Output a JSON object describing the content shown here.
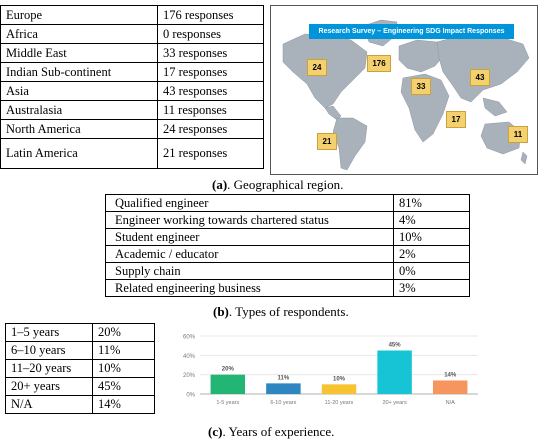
{
  "regions": [
    {
      "region": "Europe",
      "responses": "176 responses"
    },
    {
      "region": "Africa",
      "responses": "0 responses"
    },
    {
      "region": "Middle East",
      "responses": "33 responses"
    },
    {
      "region": "Indian Sub-continent",
      "responses": "17 responses"
    },
    {
      "region": "Asia",
      "responses": "43 responses"
    },
    {
      "region": "Australasia",
      "responses": "11 responses"
    },
    {
      "region": "North America",
      "responses": "24 responses"
    },
    {
      "region": "Latin America",
      "responses": "21 responses"
    }
  ],
  "map": {
    "banner": "Research Survey – Engineering SDG Impact Responses",
    "badges": {
      "north_america": "24",
      "europe": "176",
      "middle_east": "33",
      "asia": "43",
      "indian_subcontinent": "17",
      "latin_america": "21",
      "australasia": "11"
    },
    "land_color": "#a9b1ba",
    "badge_color": "#f4d06f",
    "banner_color": "#0095db"
  },
  "captions": {
    "a_label": "(a)",
    "a_text": ". Geographical region.",
    "b_label": "(b)",
    "b_text": ". Types of respondents.",
    "c_label": "(c)",
    "c_text": ". Years of experience."
  },
  "respondents": [
    {
      "type": "Qualified engineer",
      "pct": "81%"
    },
    {
      "type": "Engineer working towards chartered status",
      "pct": "4%"
    },
    {
      "type": "Student engineer",
      "pct": "10%"
    },
    {
      "type": "Academic / educator",
      "pct": "2%"
    },
    {
      "type": "Supply chain",
      "pct": "0%"
    },
    {
      "type": "Related engineering business",
      "pct": "3%"
    }
  ],
  "experience": [
    {
      "range": "1–5 years",
      "pct": "20%"
    },
    {
      "range": "6–10 years",
      "pct": "11%"
    },
    {
      "range": "11–20 years",
      "pct": "10%"
    },
    {
      "range": "20+ years",
      "pct": "45%"
    },
    {
      "range": "N/A",
      "pct": "14%"
    }
  ],
  "chart_data": {
    "type": "bar",
    "categories": [
      "1-5 years",
      "6-10 years",
      "11-20 years",
      "20+ years",
      "N/A"
    ],
    "values": [
      20,
      11,
      10,
      45,
      14
    ],
    "data_labels": [
      "20%",
      "11%",
      "10%",
      "45%",
      "14%"
    ],
    "colors": [
      "#22b573",
      "#2e86c1",
      "#f7c331",
      "#16c4d6",
      "#f7955e"
    ],
    "yticks": [
      "0%",
      "20%",
      "40%",
      "60%"
    ],
    "ylim": [
      0,
      60
    ],
    "grid": true,
    "title": "",
    "xlabel": "",
    "ylabel": ""
  }
}
